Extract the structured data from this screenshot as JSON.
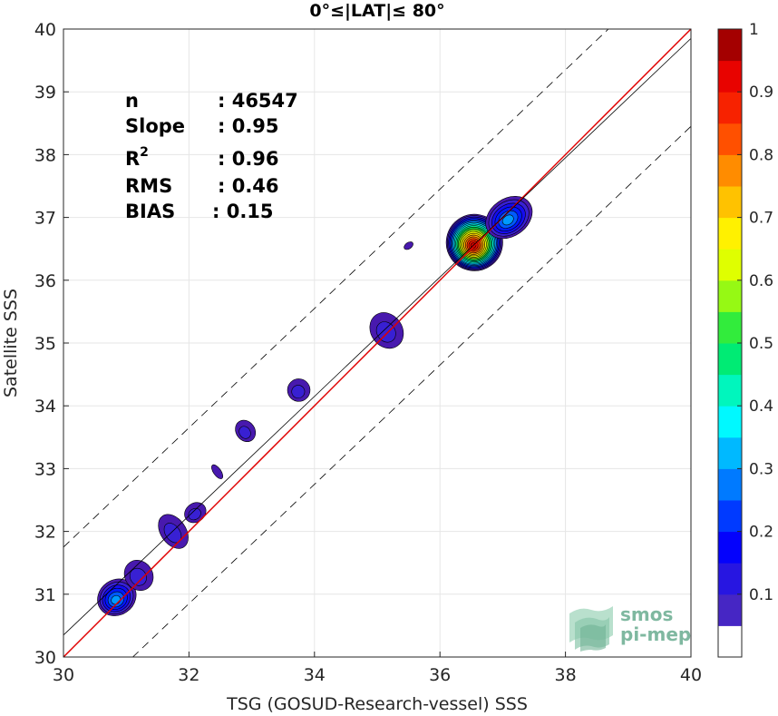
{
  "chart_data": {
    "type": "heatmap",
    "title": "0°≤|LAT|≤ 80°",
    "xlabel": "TSG (GOSUD-Research-vessel) SSS",
    "ylabel": "Satellite SSS",
    "xlim": [
      30,
      40
    ],
    "ylim": [
      30,
      40
    ],
    "xticks": [
      30,
      32,
      34,
      36,
      38,
      40
    ],
    "yticks": [
      30,
      31,
      32,
      33,
      34,
      35,
      36,
      37,
      38,
      39,
      40
    ],
    "grid": true,
    "colorbar": {
      "range": [
        0,
        1
      ],
      "ticks": [
        0.1,
        0.2,
        0.3,
        0.4,
        0.5,
        0.6,
        0.7,
        0.8,
        0.9,
        1
      ],
      "levels": 20
    },
    "stats": [
      {
        "label": "n",
        "value": ": 46547"
      },
      {
        "label": "Slope",
        "value": ": 0.95"
      },
      {
        "label": "R",
        "sup": "2",
        "value": ": 0.96"
      },
      {
        "label": "RMS",
        "value": ": 0.46"
      },
      {
        "label": "BIAS",
        "value": ": 0.15"
      }
    ],
    "lines": {
      "one_to_one": {
        "color": "#e00000",
        "x": [
          30,
          40
        ],
        "y": [
          30,
          40
        ]
      },
      "regression": {
        "color": "#000000",
        "slope": 0.95,
        "intercept": 1.85
      },
      "offset_bands": {
        "offset": 1.4,
        "style": "dashed"
      }
    },
    "density_blobs": [
      {
        "x": 30.85,
        "y": 30.95,
        "rx": 0.32,
        "ry": 0.28,
        "peak": 0.32
      },
      {
        "x": 31.2,
        "y": 31.3,
        "rx": 0.22,
        "ry": 0.25,
        "peak": 0.1
      },
      {
        "x": 31.75,
        "y": 32.0,
        "rx": 0.2,
        "ry": 0.3,
        "peak": 0.1
      },
      {
        "x": 32.1,
        "y": 32.3,
        "rx": 0.18,
        "ry": 0.15,
        "peak": 0.08
      },
      {
        "x": 32.45,
        "y": 32.95,
        "rx": 0.06,
        "ry": 0.13,
        "peak": 0.06
      },
      {
        "x": 32.9,
        "y": 33.6,
        "rx": 0.15,
        "ry": 0.18,
        "peak": 0.08
      },
      {
        "x": 33.75,
        "y": 34.25,
        "rx": 0.18,
        "ry": 0.18,
        "peak": 0.08
      },
      {
        "x": 35.15,
        "y": 35.2,
        "rx": 0.25,
        "ry": 0.3,
        "peak": 0.1
      },
      {
        "x": 35.5,
        "y": 36.55,
        "rx": 0.08,
        "ry": 0.05,
        "peak": 0.06
      },
      {
        "x": 36.55,
        "y": 36.6,
        "rx": 0.45,
        "ry": 0.45,
        "peak": 0.97
      },
      {
        "x": 37.1,
        "y": 37.0,
        "rx": 0.4,
        "ry": 0.3,
        "peak": 0.32
      }
    ]
  },
  "logo": {
    "line1": "smos",
    "line2": "pi-mep"
  }
}
